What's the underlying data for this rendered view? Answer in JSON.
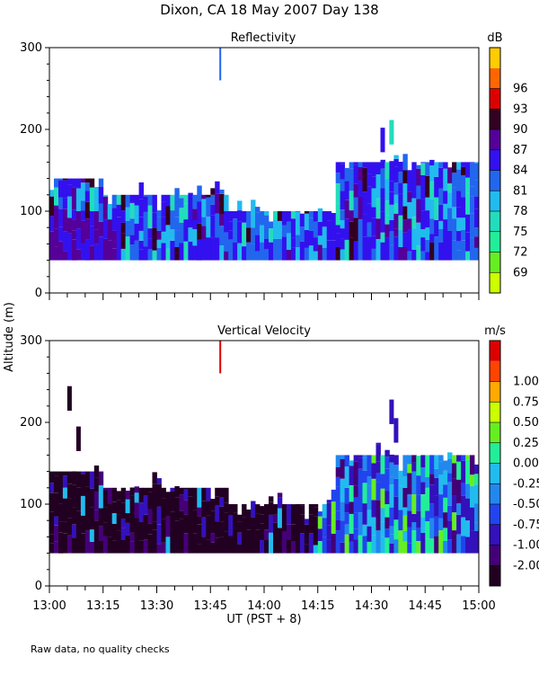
{
  "figure": {
    "title": "Dixon, CA 18 May 2007  Day 138",
    "ylabel": "Altitude (m)",
    "xlabel": "UT  (PST + 8)",
    "footnote": "Raw data, no quality checks"
  },
  "chart_data": [
    {
      "type": "heatmap",
      "title": "Reflectivity",
      "units": "dB",
      "x_range": [
        "13:00",
        "15:00"
      ],
      "xlim_minutes": [
        0,
        120
      ],
      "ylim": [
        0,
        300
      ],
      "yticks": [
        "0",
        "100",
        "200",
        "300"
      ],
      "colorbar_labels": [
        "69",
        "72",
        "75",
        "78",
        "81",
        "84",
        "87",
        "90",
        "93",
        "96"
      ],
      "colorbar_colors": [
        "#ccff00",
        "#66ee22",
        "#22ee99",
        "#22ddbb",
        "#22bbee",
        "#2266ee",
        "#3311ee",
        "#550099",
        "#330022",
        "#dd0000",
        "#ff6600",
        "#ffcc00"
      ],
      "typical_range_dB": [
        78,
        87
      ],
      "regions_minutes_to_altitude_m": [
        {
          "minutes": [
            0,
            15
          ],
          "altitude_range": [
            40,
            140
          ]
        },
        {
          "minutes": [
            15,
            50
          ],
          "altitude_range": [
            40,
            120
          ]
        },
        {
          "minutes": [
            50,
            80
          ],
          "altitude_range": [
            40,
            100
          ]
        },
        {
          "minutes": [
            80,
            120
          ],
          "altitude_range": [
            40,
            160
          ]
        }
      ]
    },
    {
      "type": "heatmap",
      "title": "Vertical Velocity",
      "units": "m/s",
      "x_range": [
        "13:00",
        "15:00"
      ],
      "xlim_minutes": [
        0,
        120
      ],
      "ylim": [
        0,
        300
      ],
      "yticks": [
        "0",
        "100",
        "200",
        "300"
      ],
      "colorbar_labels": [
        "-2.00",
        "-1.00",
        "-0.75",
        "-0.50",
        "-0.25",
        "0.00",
        "0.25",
        "0.50",
        "0.75",
        "1.00"
      ],
      "colorbar_colors": [
        "#220022",
        "#440077",
        "#3311bb",
        "#2244ee",
        "#2288ee",
        "#22bbee",
        "#22ee99",
        "#66ee22",
        "#ccff00",
        "#ffaa00",
        "#ff4400",
        "#dd0000"
      ],
      "typical_range_m_s": [
        -2.0,
        0.25
      ]
    }
  ],
  "xticks": [
    "13:00",
    "13:15",
    "13:30",
    "13:45",
    "14:00",
    "14:15",
    "14:30",
    "14:45",
    "15:00"
  ]
}
